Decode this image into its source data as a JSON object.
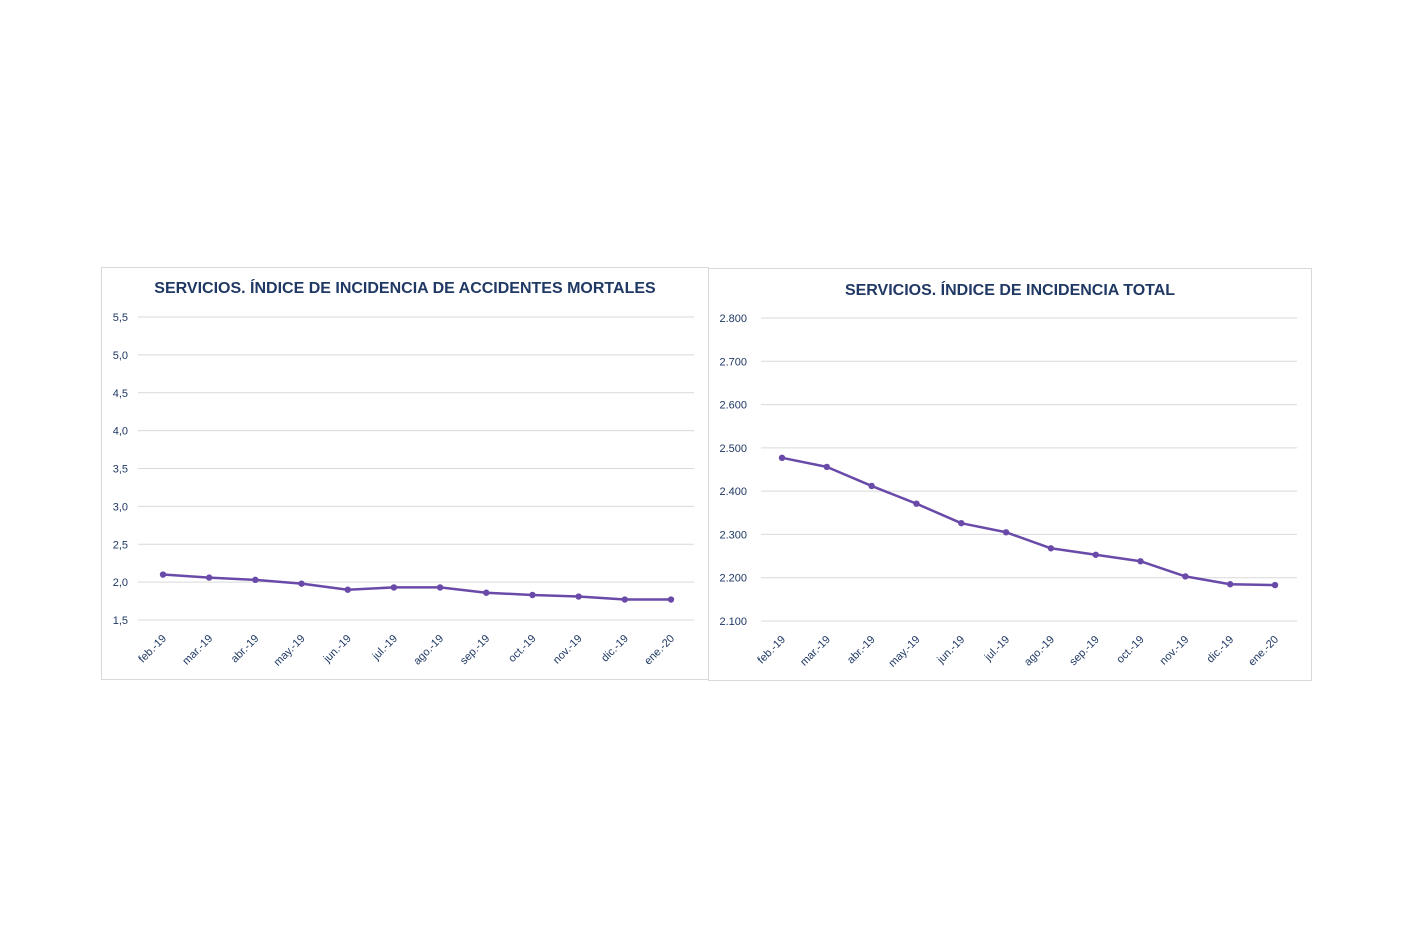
{
  "chart_data": [
    {
      "type": "line",
      "title": "SERVICIOS. ÍNDICE DE INCIDENCIA DE ACCIDENTES MORTALES",
      "categories": [
        "feb.-19",
        "mar.-19",
        "abr.-19",
        "may.-19",
        "jun.-19",
        "jul.-19",
        "ago.-19",
        "sep.-19",
        "oct.-19",
        "nov.-19",
        "dic.-19",
        "ene.-20"
      ],
      "series": [
        {
          "values": [
            2.1,
            2.06,
            2.03,
            1.98,
            1.9,
            1.93,
            1.93,
            1.86,
            1.83,
            1.81,
            1.77,
            1.77
          ]
        }
      ],
      "yticks": [
        "1,5",
        "2,0",
        "2,5",
        "3,0",
        "3,5",
        "4,0",
        "4,5",
        "5,0",
        "5,5"
      ],
      "ylim": [
        1.5,
        5.5
      ],
      "grid": true,
      "color": "#6a4aa8"
    },
    {
      "type": "line",
      "title": "SERVICIOS. ÍNDICE DE INCIDENCIA TOTAL",
      "categories": [
        "feb.-19",
        "mar.-19",
        "abr.-19",
        "may.-19",
        "jun.-19",
        "jul.-19",
        "ago.-19",
        "sep.-19",
        "oct.-19",
        "nov.-19",
        "dic.-19",
        "ene.-20"
      ],
      "series": [
        {
          "values": [
            2477,
            2456,
            2412,
            2371,
            2326,
            2305,
            2268,
            2253,
            2238,
            2203,
            2185,
            2183
          ]
        }
      ],
      "yticks": [
        "2.100",
        "2.200",
        "2.300",
        "2.400",
        "2.500",
        "2.600",
        "2.700",
        "2.800"
      ],
      "ylim": [
        2100,
        2800
      ],
      "grid": true,
      "color": "#6a4aa8"
    }
  ]
}
